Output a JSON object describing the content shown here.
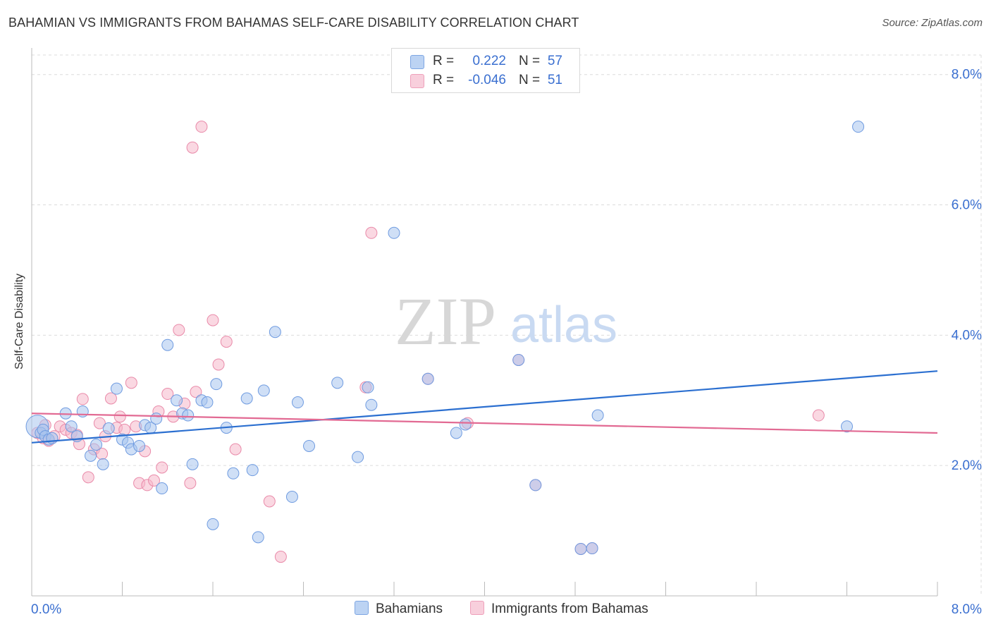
{
  "title": "BAHAMIAN VS IMMIGRANTS FROM BAHAMAS SELF-CARE DISABILITY CORRELATION CHART",
  "source": "Source: ZipAtlas.com",
  "watermark": {
    "zip": "ZIP",
    "atlas": "atlas"
  },
  "legend_top": {
    "rows": [
      {
        "r_label": "R =",
        "r_value": "0.222",
        "n_label": "N =",
        "n_value": "57"
      },
      {
        "r_label": "R =",
        "r_value": "-0.046",
        "n_label": "N =",
        "n_value": "51"
      }
    ]
  },
  "legend_bottom": [
    "Bahamians",
    "Immigrants from Bahamas"
  ],
  "colors": {
    "blue_fill": "#a8c5ef",
    "blue_stroke": "#6f9be0",
    "blue_line": "#2b6fd0",
    "pink_fill": "#f5b8cb",
    "pink_stroke": "#e98aa9",
    "pink_line": "#e26a93",
    "tick_label": "#3a6fd0",
    "grid": "#dcdcdc"
  },
  "chart_data": {
    "type": "scatter",
    "title": "BAHAMIAN VS IMMIGRANTS FROM BAHAMAS SELF-CARE DISABILITY CORRELATION CHART",
    "xlabel": "",
    "ylabel": "Self-Care Disability",
    "xlim": [
      0,
      8
    ],
    "ylim": [
      0,
      8.3
    ],
    "x_tick_labels": [
      "0.0%",
      "8.0%"
    ],
    "y_ticks": [
      2,
      4,
      6,
      8
    ],
    "y_tick_labels": [
      "2.0%",
      "4.0%",
      "6.0%",
      "8.0%"
    ],
    "grid": true,
    "legend_position": "top-center",
    "series": [
      {
        "name": "Bahamians",
        "color": "#a8c5ef",
        "trend": {
          "x": [
            0,
            8
          ],
          "y": [
            2.35,
            3.45
          ]
        },
        "points": [
          {
            "x": 0.05,
            "y": 2.6,
            "big": true
          },
          {
            "x": 0.08,
            "y": 2.5
          },
          {
            "x": 0.1,
            "y": 2.55
          },
          {
            "x": 0.12,
            "y": 2.45
          },
          {
            "x": 0.15,
            "y": 2.4
          },
          {
            "x": 0.18,
            "y": 2.42
          },
          {
            "x": 0.3,
            "y": 2.8
          },
          {
            "x": 0.35,
            "y": 2.6
          },
          {
            "x": 0.4,
            "y": 2.45
          },
          {
            "x": 0.45,
            "y": 2.83
          },
          {
            "x": 0.52,
            "y": 2.15
          },
          {
            "x": 0.57,
            "y": 2.32
          },
          {
            "x": 0.63,
            "y": 2.02
          },
          {
            "x": 0.68,
            "y": 2.57
          },
          {
            "x": 0.75,
            "y": 3.18
          },
          {
            "x": 0.8,
            "y": 2.4
          },
          {
            "x": 0.85,
            "y": 2.35
          },
          {
            "x": 0.88,
            "y": 2.25
          },
          {
            "x": 0.95,
            "y": 2.3
          },
          {
            "x": 1.0,
            "y": 2.62
          },
          {
            "x": 1.05,
            "y": 2.58
          },
          {
            "x": 1.1,
            "y": 2.72
          },
          {
            "x": 1.15,
            "y": 1.65
          },
          {
            "x": 1.2,
            "y": 3.85
          },
          {
            "x": 1.28,
            "y": 3.0
          },
          {
            "x": 1.33,
            "y": 2.8
          },
          {
            "x": 1.38,
            "y": 2.77
          },
          {
            "x": 1.42,
            "y": 2.02
          },
          {
            "x": 1.5,
            "y": 3.0
          },
          {
            "x": 1.55,
            "y": 2.97
          },
          {
            "x": 1.6,
            "y": 1.1
          },
          {
            "x": 1.63,
            "y": 3.25
          },
          {
            "x": 1.72,
            "y": 2.58
          },
          {
            "x": 1.78,
            "y": 1.88
          },
          {
            "x": 1.9,
            "y": 3.03
          },
          {
            "x": 1.95,
            "y": 1.93
          },
          {
            "x": 2.0,
            "y": 0.9
          },
          {
            "x": 2.05,
            "y": 3.15
          },
          {
            "x": 2.15,
            "y": 4.05
          },
          {
            "x": 2.3,
            "y": 1.52
          },
          {
            "x": 2.35,
            "y": 2.97
          },
          {
            "x": 2.45,
            "y": 2.3
          },
          {
            "x": 2.7,
            "y": 3.27
          },
          {
            "x": 2.88,
            "y": 2.13
          },
          {
            "x": 2.97,
            "y": 3.2
          },
          {
            "x": 3.0,
            "y": 2.93
          },
          {
            "x": 3.2,
            "y": 5.57
          },
          {
            "x": 3.5,
            "y": 3.33
          },
          {
            "x": 3.75,
            "y": 2.5
          },
          {
            "x": 3.83,
            "y": 2.63
          },
          {
            "x": 4.3,
            "y": 3.62
          },
          {
            "x": 4.45,
            "y": 1.7
          },
          {
            "x": 4.85,
            "y": 0.72
          },
          {
            "x": 4.95,
            "y": 0.73
          },
          {
            "x": 5.0,
            "y": 2.77
          },
          {
            "x": 7.2,
            "y": 2.6
          },
          {
            "x": 7.3,
            "y": 7.2
          }
        ]
      },
      {
        "name": "Immigrants from Bahamas",
        "color": "#f5b8cb",
        "trend": {
          "x": [
            0,
            8
          ],
          "y": [
            2.8,
            2.5
          ]
        },
        "points": [
          {
            "x": 0.05,
            "y": 2.5
          },
          {
            "x": 0.1,
            "y": 2.42
          },
          {
            "x": 0.15,
            "y": 2.38
          },
          {
            "x": 0.2,
            "y": 2.45
          },
          {
            "x": 0.25,
            "y": 2.6
          },
          {
            "x": 0.3,
            "y": 2.55
          },
          {
            "x": 0.35,
            "y": 2.5
          },
          {
            "x": 0.4,
            "y": 2.47
          },
          {
            "x": 0.42,
            "y": 2.33
          },
          {
            "x": 0.45,
            "y": 3.02
          },
          {
            "x": 0.5,
            "y": 1.82
          },
          {
            "x": 0.55,
            "y": 2.25
          },
          {
            "x": 0.6,
            "y": 2.65
          },
          {
            "x": 0.62,
            "y": 2.18
          },
          {
            "x": 0.65,
            "y": 2.45
          },
          {
            "x": 0.7,
            "y": 3.03
          },
          {
            "x": 0.75,
            "y": 2.58
          },
          {
            "x": 0.78,
            "y": 2.75
          },
          {
            "x": 0.82,
            "y": 2.55
          },
          {
            "x": 0.88,
            "y": 3.27
          },
          {
            "x": 0.92,
            "y": 2.6
          },
          {
            "x": 0.95,
            "y": 1.73
          },
          {
            "x": 1.0,
            "y": 2.22
          },
          {
            "x": 1.02,
            "y": 1.7
          },
          {
            "x": 1.08,
            "y": 1.77
          },
          {
            "x": 1.12,
            "y": 2.83
          },
          {
            "x": 1.15,
            "y": 1.97
          },
          {
            "x": 1.2,
            "y": 3.1
          },
          {
            "x": 1.25,
            "y": 2.75
          },
          {
            "x": 1.3,
            "y": 4.08
          },
          {
            "x": 1.35,
            "y": 2.95
          },
          {
            "x": 1.4,
            "y": 1.73
          },
          {
            "x": 1.42,
            "y": 6.88
          },
          {
            "x": 1.45,
            "y": 3.13
          },
          {
            "x": 1.5,
            "y": 7.2
          },
          {
            "x": 1.6,
            "y": 4.23
          },
          {
            "x": 1.65,
            "y": 3.55
          },
          {
            "x": 1.72,
            "y": 3.9
          },
          {
            "x": 1.8,
            "y": 2.25
          },
          {
            "x": 2.1,
            "y": 1.45
          },
          {
            "x": 2.2,
            "y": 0.6
          },
          {
            "x": 2.95,
            "y": 3.2
          },
          {
            "x": 3.0,
            "y": 5.57
          },
          {
            "x": 3.5,
            "y": 3.33
          },
          {
            "x": 3.85,
            "y": 2.65
          },
          {
            "x": 4.3,
            "y": 3.62
          },
          {
            "x": 4.45,
            "y": 1.7
          },
          {
            "x": 4.85,
            "y": 0.72
          },
          {
            "x": 4.95,
            "y": 0.73
          },
          {
            "x": 6.95,
            "y": 2.77
          },
          {
            "x": 0.12,
            "y": 2.62
          }
        ]
      }
    ]
  }
}
